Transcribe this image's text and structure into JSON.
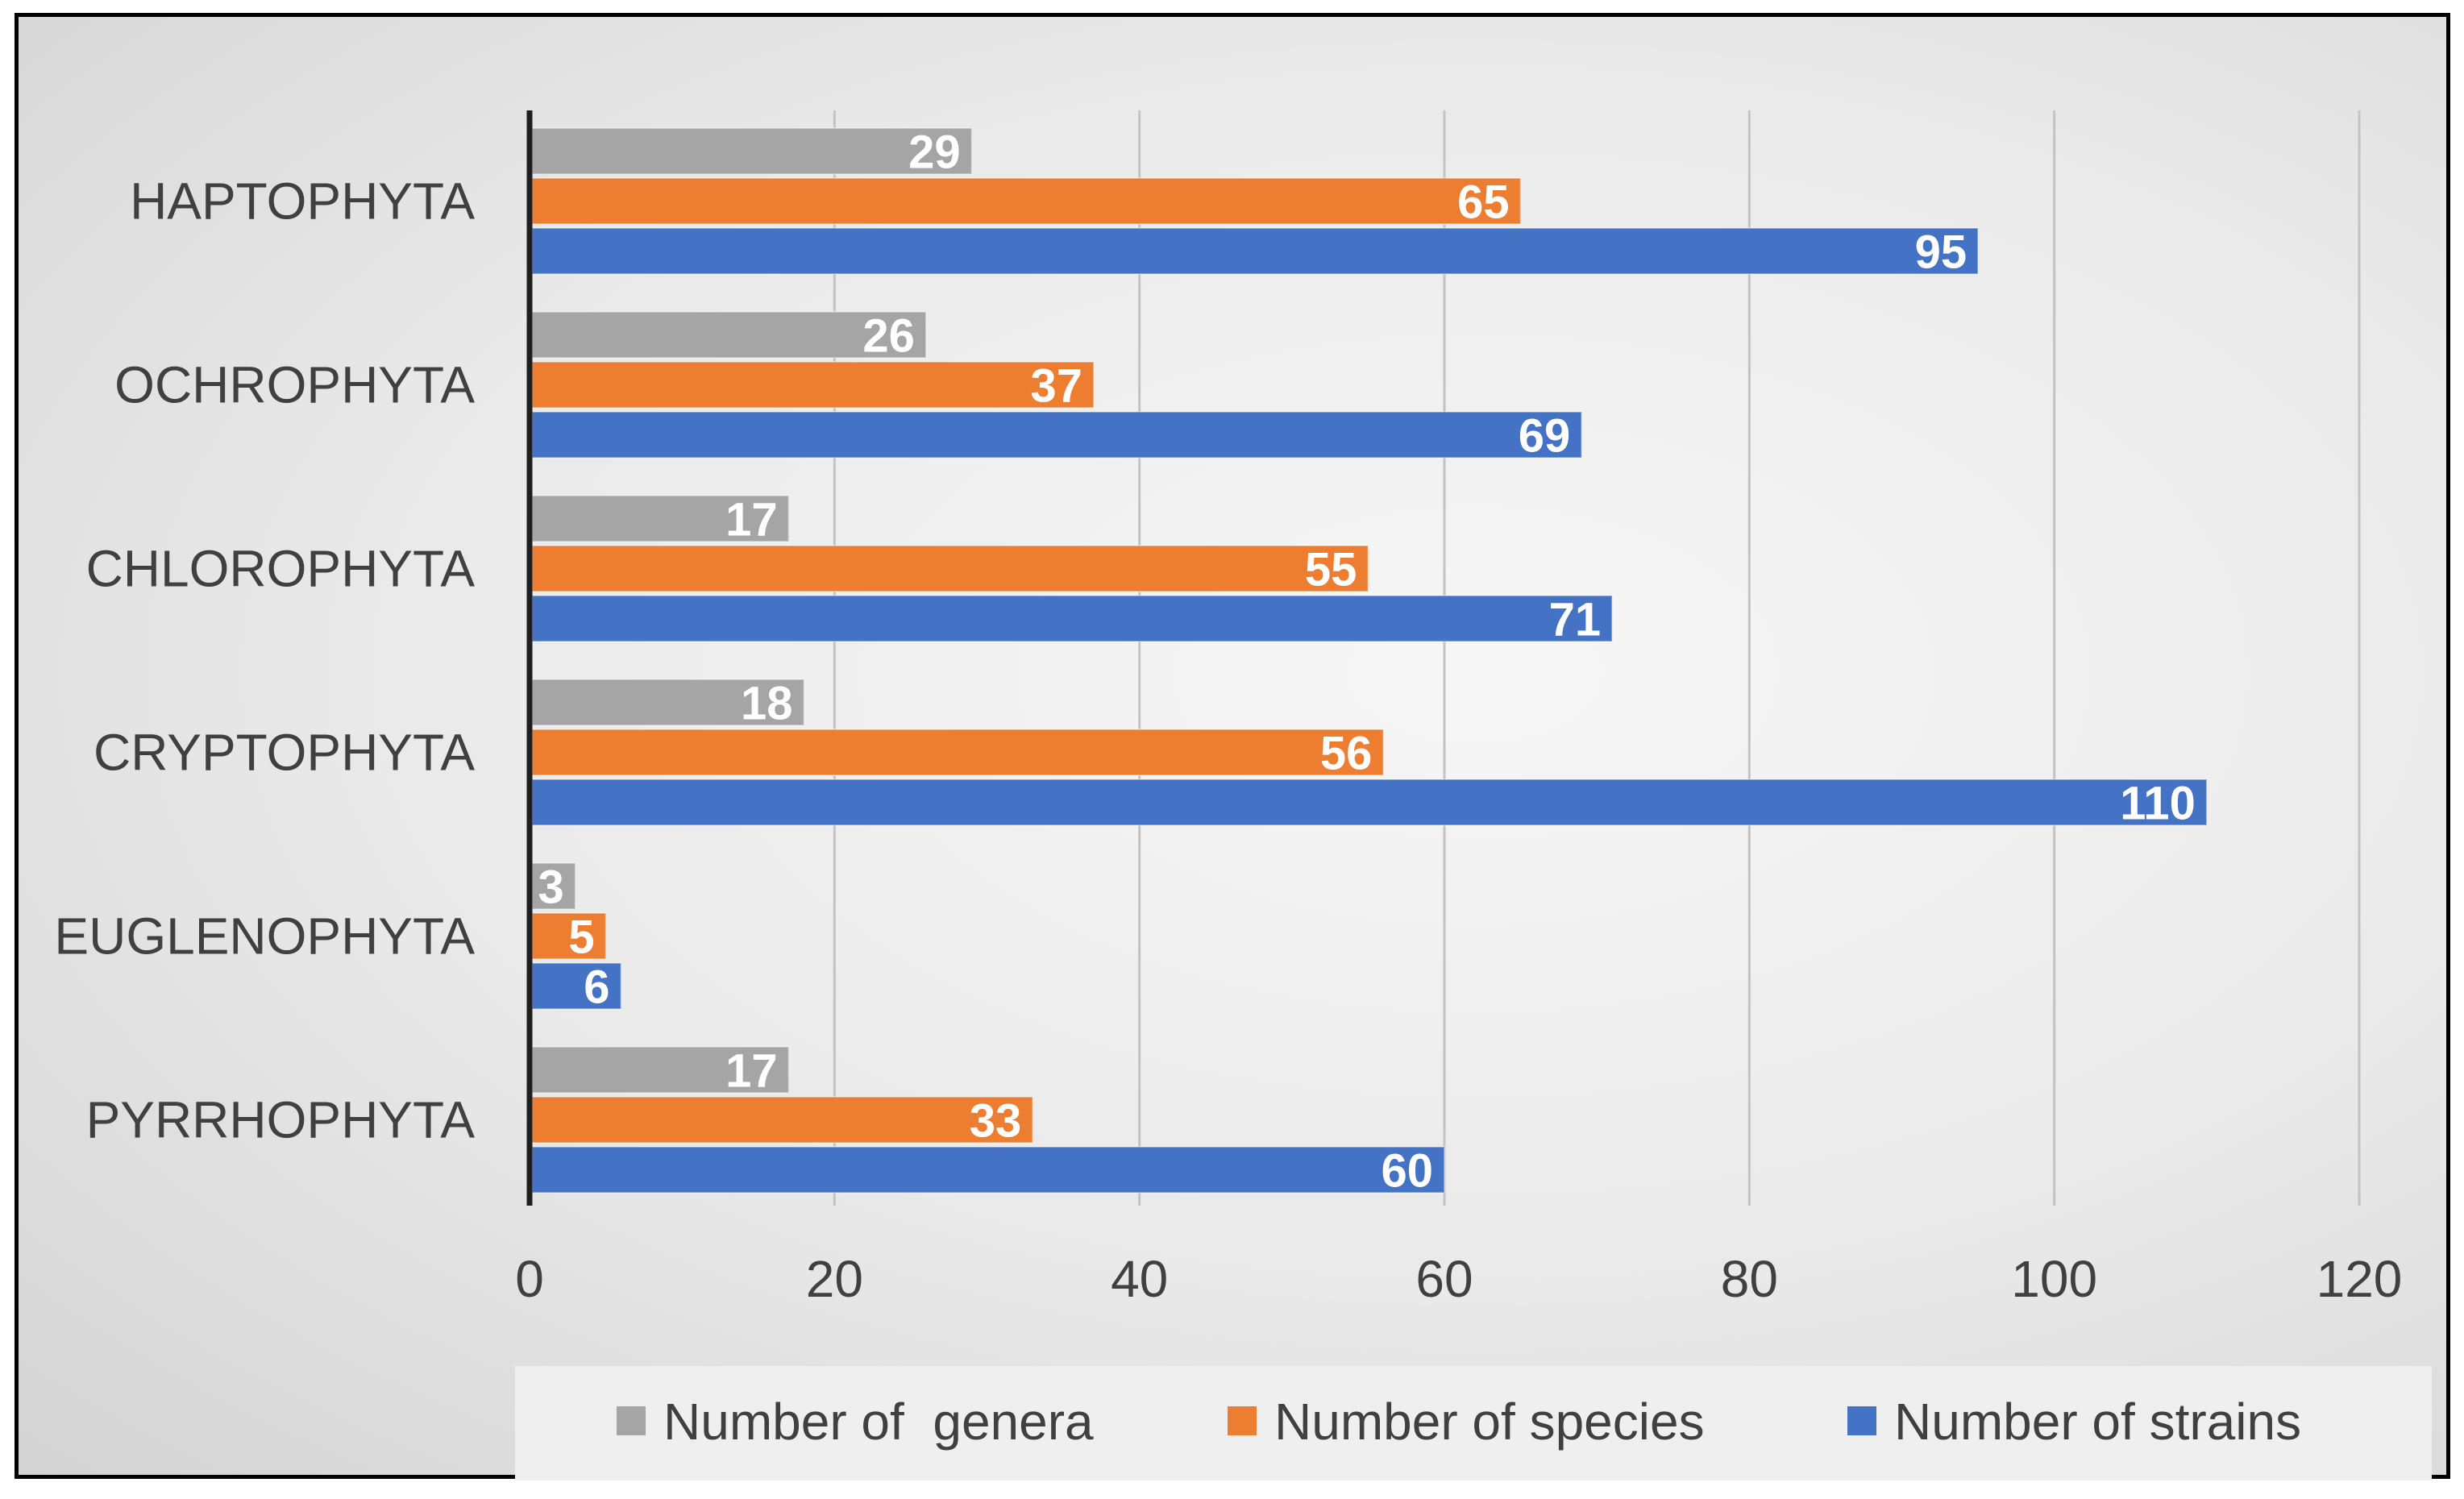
{
  "chart_data": {
    "type": "bar",
    "orientation": "horizontal",
    "title": "",
    "xlabel": "",
    "ylabel": "",
    "categories": [
      "HAPTOPHYTA",
      "OCHROPHYTA",
      "CHLOROPHYTA",
      "CRYPTOPHYTA",
      "EUGLENOPHYTA",
      "PYRRHOPHYTA"
    ],
    "series": [
      {
        "name": "Number of  genera",
        "color": "#a5a5a5",
        "values": [
          29,
          26,
          17,
          18,
          3,
          17
        ]
      },
      {
        "name": "Number of species",
        "color": "#ed7d31",
        "values": [
          65,
          37,
          55,
          56,
          5,
          33
        ]
      },
      {
        "name": "Number of strains",
        "color": "#4472c4",
        "values": [
          95,
          69,
          71,
          110,
          6,
          60
        ]
      }
    ],
    "xlim": [
      0,
      120
    ],
    "xticks": [
      0,
      20,
      40,
      60,
      80,
      100,
      120
    ],
    "grid": true,
    "legend": "bottom"
  }
}
